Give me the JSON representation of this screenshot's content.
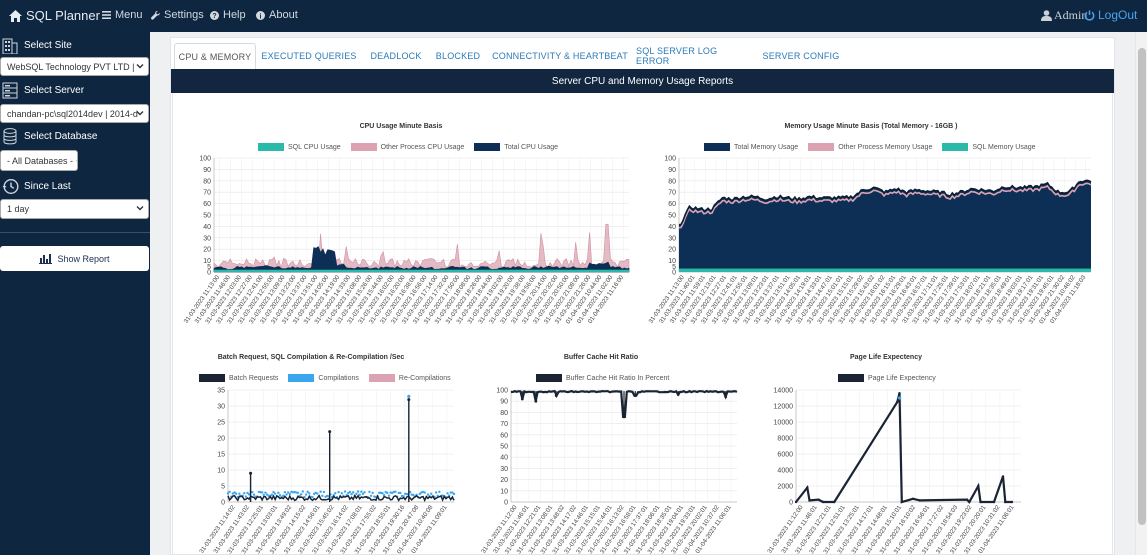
{
  "topbar": {
    "brand": "SQL Planner",
    "nav": [
      {
        "label": "Menu",
        "icon": "menu-icon"
      },
      {
        "label": "Settings",
        "icon": "wrench-icon"
      },
      {
        "label": "Help",
        "icon": "help-icon"
      },
      {
        "label": "About",
        "icon": "info-icon"
      }
    ],
    "user": "Admin",
    "logout": "LogOut"
  },
  "sidebar": {
    "select_site_label": "Select Site",
    "site_value": "WebSQL Technology PVT LTD |",
    "select_server_label": "Select Server",
    "server_value": "chandan-pc\\sql2014dev | 2014-d",
    "select_database_label": "Select Database",
    "database_value": "- All Databases -",
    "since_last_label": "Since Last",
    "since_last_value": "1 day",
    "show_report": "Show Report"
  },
  "tabs": [
    {
      "label": "CPU & MEMORY",
      "active": true
    },
    {
      "label": "EXECUTED QUERIES",
      "active": false
    },
    {
      "label": "DEADLOCK",
      "active": false
    },
    {
      "label": "BLOCKED",
      "active": false
    },
    {
      "label": "CONNECTIVITY & HEARTBEAT",
      "active": false
    },
    {
      "label": "SQL SERVER LOG ERROR",
      "active": false
    },
    {
      "label": "SERVER CONFIG",
      "active": false
    }
  ],
  "panel_title": "Server CPU and Memory Usage Reports",
  "colors": {
    "navy": "#0f2640",
    "link": "#2a7ab8",
    "teal": "#2bb9a9",
    "pink": "#dba3b2",
    "dark": "#0d2f55",
    "blue": "#3aa6f0",
    "line": "#1a2434"
  },
  "chart_data": [
    {
      "type": "area",
      "title": "CPU Usage Minute Basis",
      "ylim": [
        0,
        100
      ],
      "yticks": [
        0,
        5,
        10,
        20,
        30,
        40,
        50,
        60,
        70,
        80,
        90,
        100
      ],
      "series": [
        {
          "name": "SQL CPU Usage",
          "color": "#2bb9a9"
        },
        {
          "name": "Other Process CPU Usage",
          "color": "#dba3b2"
        },
        {
          "name": "Total CPU Usage",
          "color": "#0d2f55"
        }
      ],
      "x_labels": [
        "31-03-2023 11:13:00",
        "31-03-2023 11:46:00",
        "31-03-2023 12:03:00",
        "31-03-2023 12:27:00",
        "31-03-2023 12:41:00",
        "31-03-2023 12:55:00",
        "31-03-2023 13:09:00",
        "31-03-2023 13:23:00",
        "31-03-2023 13:37:00",
        "31-03-2023 13:51:00",
        "31-03-2023 14:05:00",
        "31-03-2023 14:19:00",
        "31-03-2023 14:33:00",
        "31-03-2023 15:08:00",
        "31-03-2023 15:26:00",
        "31-03-2023 15:44:00",
        "31-03-2023 16:02:00",
        "31-03-2023 16:20:00",
        "31-03-2023 16:38:00",
        "31-03-2023 16:56:00",
        "31-03-2023 17:14:00",
        "31-03-2023 17:32:00",
        "31-03-2023 17:50:00",
        "31-03-2023 18:08:00",
        "31-03-2023 18:26:00",
        "31-03-2023 18:44:00",
        "31-03-2023 19:02:00",
        "31-03-2023 19:20:00",
        "31-03-2023 19:38:00",
        "31-03-2023 19:56:00",
        "31-03-2023 20:14:00",
        "31-03-2023 20:32:00",
        "31-03-2023 20:50:00",
        "31-03-2023 21:08:00",
        "31-03-2023 21:26:00",
        "01-04-2023 10:44:00",
        "01-04-2023 11:02:00",
        "01-04-2023 11:16:00"
      ],
      "total_approx": [
        3,
        2,
        3,
        3,
        4,
        3,
        2,
        3,
        3,
        17,
        14,
        5,
        3,
        3,
        2,
        3,
        3,
        2,
        3,
        3,
        2,
        3,
        3,
        2,
        3,
        2,
        3,
        3,
        2,
        3,
        4,
        3,
        3,
        2,
        6,
        7,
        3,
        2
      ],
      "other_peaks_approx": [
        12,
        22,
        48,
        15,
        20,
        18,
        12,
        10,
        9,
        50,
        35,
        18,
        30,
        12,
        15,
        22,
        15,
        12,
        36,
        16,
        14,
        12,
        34,
        10,
        12,
        24,
        12,
        14,
        35,
        38,
        12,
        40,
        36,
        12,
        38,
        50,
        16,
        14
      ],
      "sql_approx": 2
    },
    {
      "type": "area",
      "title": "Memory Usage Minute Basis (Total Memory - 16GB )",
      "ylim": [
        0,
        100
      ],
      "yticks": [
        0,
        5,
        10,
        20,
        30,
        40,
        50,
        60,
        70,
        80,
        90,
        100
      ],
      "series": [
        {
          "name": "Total Memory Usage",
          "color": "#0d2f55"
        },
        {
          "name": "Other Process Memory Usage",
          "color": "#dba3b2"
        },
        {
          "name": "SQL Memory Usage",
          "color": "#2bb9a9"
        }
      ],
      "x_labels": [
        "31-03-2023 11:13:00",
        "31-03-2023 11:40:01",
        "31-03-2023 11:59:01",
        "31-03-2023 12:13:01",
        "31-03-2023 12:27:01",
        "31-03-2023 12:41:01",
        "31-03-2023 12:55:01",
        "31-03-2023 13:09:01",
        "31-03-2023 13:23:01",
        "31-03-2023 13:37:01",
        "31-03-2023 13:51:01",
        "31-03-2023 14:05:01",
        "31-03-2023 14:19:01",
        "31-03-2023 14:33:01",
        "31-03-2023 14:47:01",
        "31-03-2023 15:01:01",
        "31-03-2023 15:15:01",
        "31-03-2023 15:29:02",
        "31-03-2023 15:43:02",
        "31-03-2023 16:01:02",
        "31-03-2023 16:15:01",
        "31-03-2023 16:29:01",
        "31-03-2023 16:43:01",
        "31-03-2023 16:57:01",
        "31-03-2023 17:11:01",
        "31-03-2023 17:25:01",
        "31-03-2023 17:39:01",
        "31-03-2023 17:53:01",
        "31-03-2023 18:07:01",
        "31-03-2023 18:21:01",
        "31-03-2023 18:35:01",
        "31-03-2023 18:49:01",
        "31-03-2023 19:03:01",
        "31-03-2023 19:17:01",
        "31-03-2023 19:31:01",
        "31-03-2023 19:45:01",
        "31-03-2023 21:30:02",
        "01-04-2023 10:46:02",
        "01-04-2023 11:18:03"
      ],
      "total_approx": [
        40,
        57,
        55,
        55,
        65,
        64,
        66,
        66,
        64,
        66,
        65,
        64,
        66,
        65,
        65,
        65,
        66,
        72,
        74,
        70,
        73,
        70,
        72,
        71,
        70,
        68,
        70,
        73,
        72,
        71,
        75,
        74,
        74,
        75,
        77,
        70,
        70,
        80,
        80
      ],
      "sql_approx": 3
    },
    {
      "type": "bar",
      "title": "Batch Request, SQL Compilation & Re-Compilation /Sec",
      "ylim": [
        0,
        35
      ],
      "yticks": [
        0,
        5,
        10,
        15,
        20,
        25,
        30,
        35
      ],
      "series": [
        {
          "name": "Batch Requests",
          "color": "#1a2434"
        },
        {
          "name": "Compilations",
          "color": "#3aa6f0"
        },
        {
          "name": "Re-Compilations",
          "color": "#dba3b2"
        }
      ],
      "x_labels": [
        "31-03-2023 11:14:02",
        "31-03-2023 11:43:02",
        "31-03-2023 12:25:01",
        "31-03-2023 13:03:01",
        "31-03-2023 13:49:02",
        "31-03-2023 14:15:02",
        "31-03-2023 14:56:01",
        "31-03-2023 15:45:02",
        "31-03-2023 16:14:02",
        "31-03-2023 17:08:01",
        "31-03-2023 17:55:02",
        "31-03-2023 18:55:01",
        "31-03-2023 19:30:16",
        "31-03-2023 20:47:08",
        "01-04-2023 10:40:08",
        "01-04-2023 11:09:01"
      ],
      "spikes_approx": {
        "batch": [
          [
            0.1,
            9
          ],
          [
            0.45,
            22
          ],
          [
            0.8,
            32
          ]
        ],
        "compilations_baseline": 1.5,
        "compilations_peak": 33
      }
    },
    {
      "type": "line",
      "title": "Buffer Cache Hit Ratio",
      "ylim": [
        0,
        100
      ],
      "yticks": [
        0,
        10,
        20,
        30,
        40,
        50,
        60,
        70,
        80,
        90,
        100
      ],
      "series": [
        {
          "name": "Buffer Cache Hit Ratio In Percent",
          "color": "#1a2434"
        }
      ],
      "x_labels": [
        "31-03-2023 11:12:00",
        "31-03-2023 11:46:01",
        "31-03-2023 12:21:01",
        "31-03-2023 13:08:01",
        "31-03-2023 13:48:02",
        "31-03-2023 14:17:02",
        "31-03-2023 14:46:01",
        "31-03-2023 15:15:01",
        "31-03-2023 15:44:01",
        "31-03-2023 16:13:02",
        "31-03-2023 16:58:01",
        "31-03-2023 17:37:01",
        "31-03-2023 18:06:01",
        "31-03-2023 18:35:01",
        "31-03-2023 19:04:01",
        "31-03-2023 19:33:01",
        "31-03-2023 20:02:01",
        "01-04-2023 10:37:02",
        "01-04-2023 11:06:01"
      ],
      "baseline_approx": 99,
      "dips_approx": [
        [
          0.05,
          92
        ],
        [
          0.11,
          90
        ],
        [
          0.2,
          95
        ],
        [
          0.5,
          76
        ],
        [
          0.55,
          95
        ],
        [
          0.74,
          96
        ],
        [
          0.95,
          94
        ]
      ]
    },
    {
      "type": "line",
      "title": "Page Life Expectency",
      "ylim": [
        0,
        14000
      ],
      "yticks": [
        0,
        2000,
        4000,
        6000,
        8000,
        10000,
        12000,
        14000
      ],
      "series": [
        {
          "name": "Page Life Expectency",
          "color": "#1a2434"
        }
      ],
      "x_labels": [
        "31-03-2023 11:12:00",
        "31-03-2023 11:46:01",
        "31-03-2023 12:21:01",
        "31-03-2023 12:51:01",
        "31-03-2023 13:25:01",
        "31-03-2023 14:17:01",
        "31-03-2023 14:48:01",
        "31-03-2023 15:10:01",
        "31-03-2023 16:10:02",
        "31-03-2023 16:56:01",
        "31-03-2023 17:27:02",
        "31-03-2023 18:54:03",
        "31-03-2023 19:23:02",
        "31-03-2023 20:20:01",
        "31-03-2023 10:31:02",
        "01-04-2023 11:06:01"
      ],
      "points_approx": [
        [
          0,
          0
        ],
        [
          0.05,
          1800
        ],
        [
          0.06,
          200
        ],
        [
          0.1,
          300
        ],
        [
          0.12,
          0
        ],
        [
          0.17,
          0
        ],
        [
          0.45,
          12500
        ],
        [
          0.46,
          13600
        ],
        [
          0.47,
          0
        ],
        [
          0.52,
          400
        ],
        [
          0.55,
          200
        ],
        [
          0.76,
          300
        ],
        [
          0.77,
          0
        ],
        [
          0.81,
          2000
        ],
        [
          0.82,
          0
        ],
        [
          0.88,
          0
        ],
        [
          0.92,
          3200
        ],
        [
          0.93,
          0
        ],
        [
          0.96,
          0
        ]
      ]
    }
  ]
}
